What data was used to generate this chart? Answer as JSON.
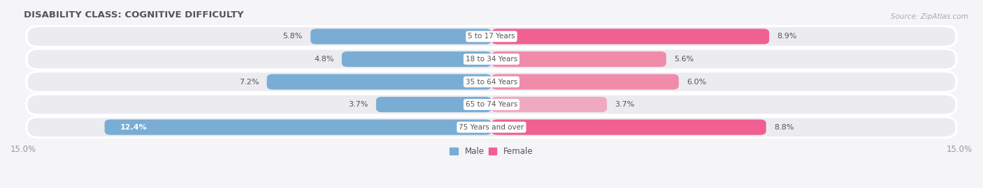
{
  "title": "DISABILITY CLASS: COGNITIVE DIFFICULTY",
  "source": "Source: ZipAtlas.com",
  "categories": [
    "75 Years and over",
    "65 to 74 Years",
    "35 to 64 Years",
    "18 to 34 Years",
    "5 to 17 Years"
  ],
  "male_values": [
    12.4,
    3.7,
    7.2,
    4.8,
    5.8
  ],
  "female_values": [
    8.8,
    3.7,
    6.0,
    5.6,
    8.9
  ],
  "female_colors": [
    "#f06090",
    "#f0aac0",
    "#f08baa",
    "#f08baa",
    "#f06090"
  ],
  "max_val": 15.0,
  "male_color": "#7aadd4",
  "female_color": "#f06090",
  "row_bg_color": "#ebebf0",
  "row_border_color": "#ffffff",
  "title_color": "#555555",
  "text_color": "#555555",
  "value_color": "#555555",
  "axis_label_color": "#999999",
  "legend_male_color": "#7aadd4",
  "legend_female_color": "#f06090",
  "bg_color": "#f5f5f8"
}
